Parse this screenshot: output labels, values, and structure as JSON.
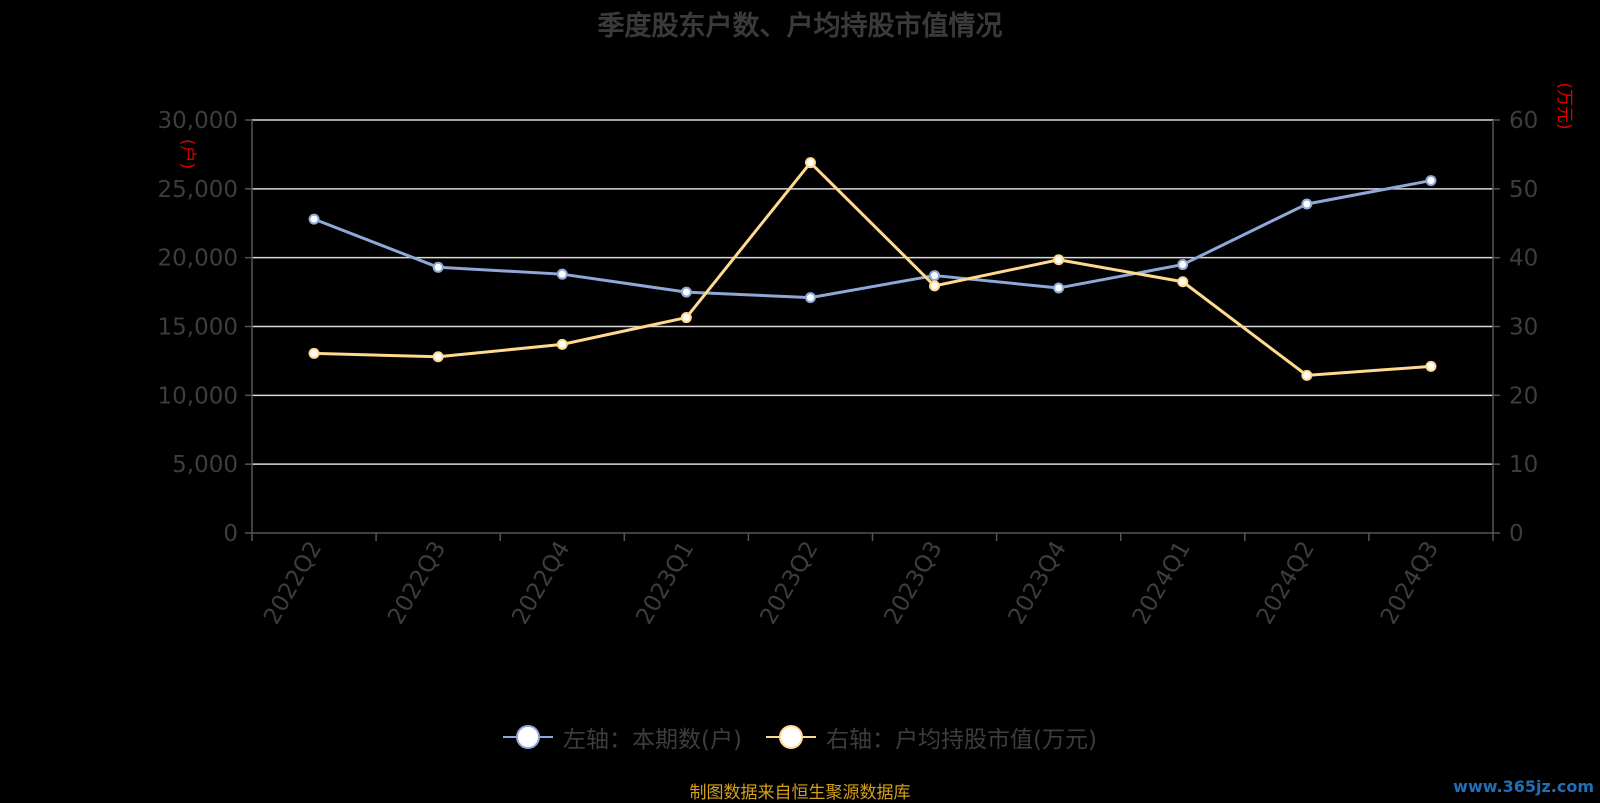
{
  "chart_data": {
    "type": "line",
    "title": "季度股东户数、户均持股市值情况",
    "categories": [
      "2022Q2",
      "2022Q3",
      "2022Q4",
      "2023Q1",
      "2023Q2",
      "2023Q3",
      "2023Q4",
      "2024Q1",
      "2024Q2",
      "2024Q3"
    ],
    "left_axis": {
      "unit": "(户)",
      "ylim": [
        0,
        30000
      ],
      "ticks": [
        "0",
        "5,000",
        "10,000",
        "15,000",
        "20,000",
        "25,000",
        "30,000"
      ],
      "tick_values": [
        0,
        5000,
        10000,
        15000,
        20000,
        25000,
        30000
      ]
    },
    "right_axis": {
      "unit": "(万元)",
      "ylim": [
        0,
        60
      ],
      "ticks": [
        "0",
        "10",
        "20",
        "30",
        "40",
        "50",
        "60"
      ],
      "tick_values": [
        0,
        10,
        20,
        30,
        40,
        50,
        60
      ]
    },
    "series": [
      {
        "name": "左轴：本期数(户)",
        "axis": "left",
        "color": "#8fa8d8",
        "values": [
          22800,
          19300,
          18800,
          17500,
          17100,
          18700,
          17800,
          19500,
          23900,
          25600
        ]
      },
      {
        "name": "右轴：户均持股市值(万元)",
        "axis": "right",
        "color": "#ffd98e",
        "values": [
          26.1,
          25.6,
          27.4,
          31.3,
          53.8,
          35.9,
          39.7,
          36.5,
          22.9,
          24.2
        ]
      }
    ],
    "grid": true,
    "legend_position": "bottom",
    "source": "制图数据来自恒生聚源数据库"
  },
  "watermark": "www.365jz.com"
}
